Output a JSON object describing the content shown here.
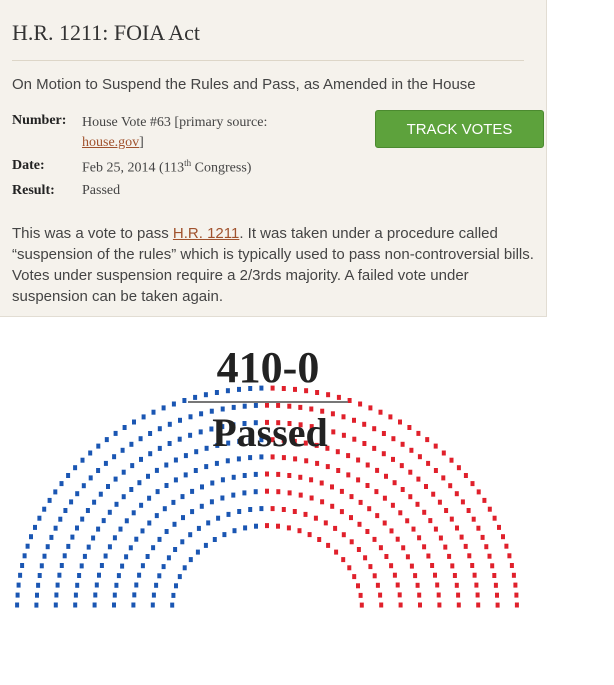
{
  "header": {
    "title": "H.R. 1211: FOIA Act",
    "subtitle": "On Motion to Suspend the Rules and Pass, as Amended in the House"
  },
  "details": {
    "number": {
      "label": "Number:",
      "text": "House Vote #63 [primary source: ",
      "link": "house.gov",
      "after": "]"
    },
    "date": {
      "label": "Date:",
      "text": "Feb 25, 2014 (113",
      "sup": "th",
      "after": " Congress)"
    },
    "result": {
      "label": "Result:",
      "text": "Passed"
    }
  },
  "button": "TRACK VOTES",
  "description": {
    "before": "This was a vote to pass ",
    "link": "H.R. 1211",
    "after": ". It was taken under a procedure called “suspension of the rules” which is typically used to pass non-controversial bills. Votes under suspension require a 2/3rds majority. A failed vote under suspension can be taken again."
  },
  "diagram": {
    "score": "410-0",
    "result": "Passed"
  }
}
